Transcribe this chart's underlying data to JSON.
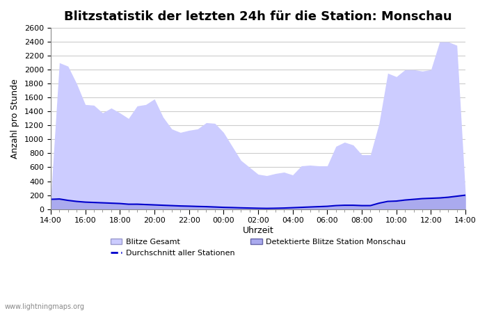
{
  "title": "Blitzstatistik der letzten 24h für die Station: Monschau",
  "xlabel": "Uhrzeit",
  "ylabel": "Anzahl pro Stunde",
  "watermark": "www.lightningmaps.org",
  "xlim": [
    0,
    25
  ],
  "ylim": [
    0,
    2600
  ],
  "yticks": [
    0,
    200,
    400,
    600,
    800,
    1000,
    1200,
    1400,
    1600,
    1800,
    2000,
    2200,
    2400,
    2600
  ],
  "xtick_labels": [
    "14:00",
    "16:00",
    "18:00",
    "20:00",
    "22:00",
    "00:00",
    "02:00",
    "04:00",
    "06:00",
    "08:00",
    "10:00",
    "12:00",
    "14:00"
  ],
  "color_gesamt": "#ccccff",
  "color_station": "#aaaaee",
  "color_avg_line": "#0000cc",
  "background_color": "#ffffff",
  "grid_color": "#cccccc",
  "title_fontsize": 13,
  "x_hours": [
    0,
    0.5,
    1,
    1.5,
    2,
    2.5,
    3,
    3.5,
    4,
    4.5,
    5,
    5.5,
    6,
    6.5,
    7,
    7.5,
    8,
    8.5,
    9,
    9.5,
    10,
    10.5,
    11,
    11.5,
    12,
    12.5,
    13,
    13.5,
    14,
    14.5,
    15,
    15.5,
    16,
    16.5,
    17,
    17.5,
    18,
    18.5,
    19,
    19.5,
    20,
    20.5,
    21,
    21.5,
    22,
    22.5,
    23,
    23.5,
    24
  ],
  "gesamt": [
    150,
    2100,
    2050,
    1800,
    1500,
    1490,
    1380,
    1450,
    1380,
    1300,
    1480,
    1500,
    1580,
    1320,
    1150,
    1100,
    1130,
    1150,
    1240,
    1230,
    1100,
    900,
    700,
    600,
    500,
    480,
    510,
    530,
    490,
    620,
    630,
    620,
    620,
    900,
    960,
    920,
    780,
    780,
    1230,
    1950,
    1900,
    2000,
    2000,
    1980,
    2000,
    2400,
    2400,
    2350,
    200
  ],
  "station": [
    130,
    150,
    130,
    120,
    100,
    95,
    90,
    85,
    80,
    75,
    85,
    80,
    70,
    60,
    50,
    45,
    45,
    40,
    35,
    30,
    25,
    20,
    15,
    12,
    10,
    10,
    12,
    15,
    18,
    20,
    25,
    30,
    35,
    40,
    50,
    55,
    50,
    45,
    80,
    100,
    110,
    130,
    140,
    145,
    150,
    160,
    175,
    190,
    200
  ],
  "avg_line": [
    140,
    145,
    125,
    110,
    100,
    95,
    90,
    85,
    80,
    70,
    70,
    65,
    60,
    55,
    50,
    45,
    42,
    38,
    35,
    30,
    25,
    22,
    18,
    15,
    12,
    10,
    12,
    15,
    20,
    25,
    30,
    35,
    40,
    50,
    55,
    55,
    50,
    50,
    85,
    110,
    115,
    130,
    140,
    150,
    155,
    160,
    170,
    185,
    200
  ]
}
